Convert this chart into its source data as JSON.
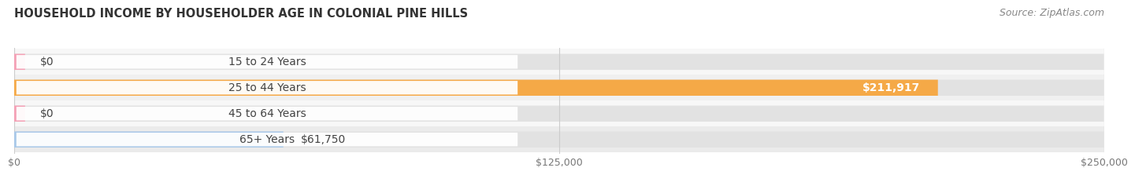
{
  "title": "HOUSEHOLD INCOME BY HOUSEHOLDER AGE IN COLONIAL PINE HILLS",
  "source": "Source: ZipAtlas.com",
  "categories": [
    "15 to 24 Years",
    "25 to 44 Years",
    "45 to 64 Years",
    "65+ Years"
  ],
  "values": [
    0,
    211917,
    0,
    61750
  ],
  "bar_colors": [
    "#f4a0b5",
    "#f5a947",
    "#f4a0b5",
    "#a8c8e8"
  ],
  "row_bg_colors": [
    "#f0f0f0",
    "#e8e8e8",
    "#f0f0f0",
    "#e8e8e8"
  ],
  "bar_track_color": "#e8e8e8",
  "xlim": [
    0,
    250000
  ],
  "xticks": [
    0,
    125000,
    250000
  ],
  "xtick_labels": [
    "$0",
    "$125,000",
    "$250,000"
  ],
  "value_labels": [
    "$0",
    "$211,917",
    "$0",
    "$61,750"
  ],
  "value_inside": [
    false,
    true,
    false,
    false
  ],
  "title_fontsize": 10.5,
  "source_fontsize": 9,
  "label_fontsize": 10,
  "tick_fontsize": 9,
  "bar_height": 0.62,
  "background_color": "#ffffff",
  "grid_color": "#cccccc",
  "text_color": "#444444",
  "source_color": "#888888"
}
